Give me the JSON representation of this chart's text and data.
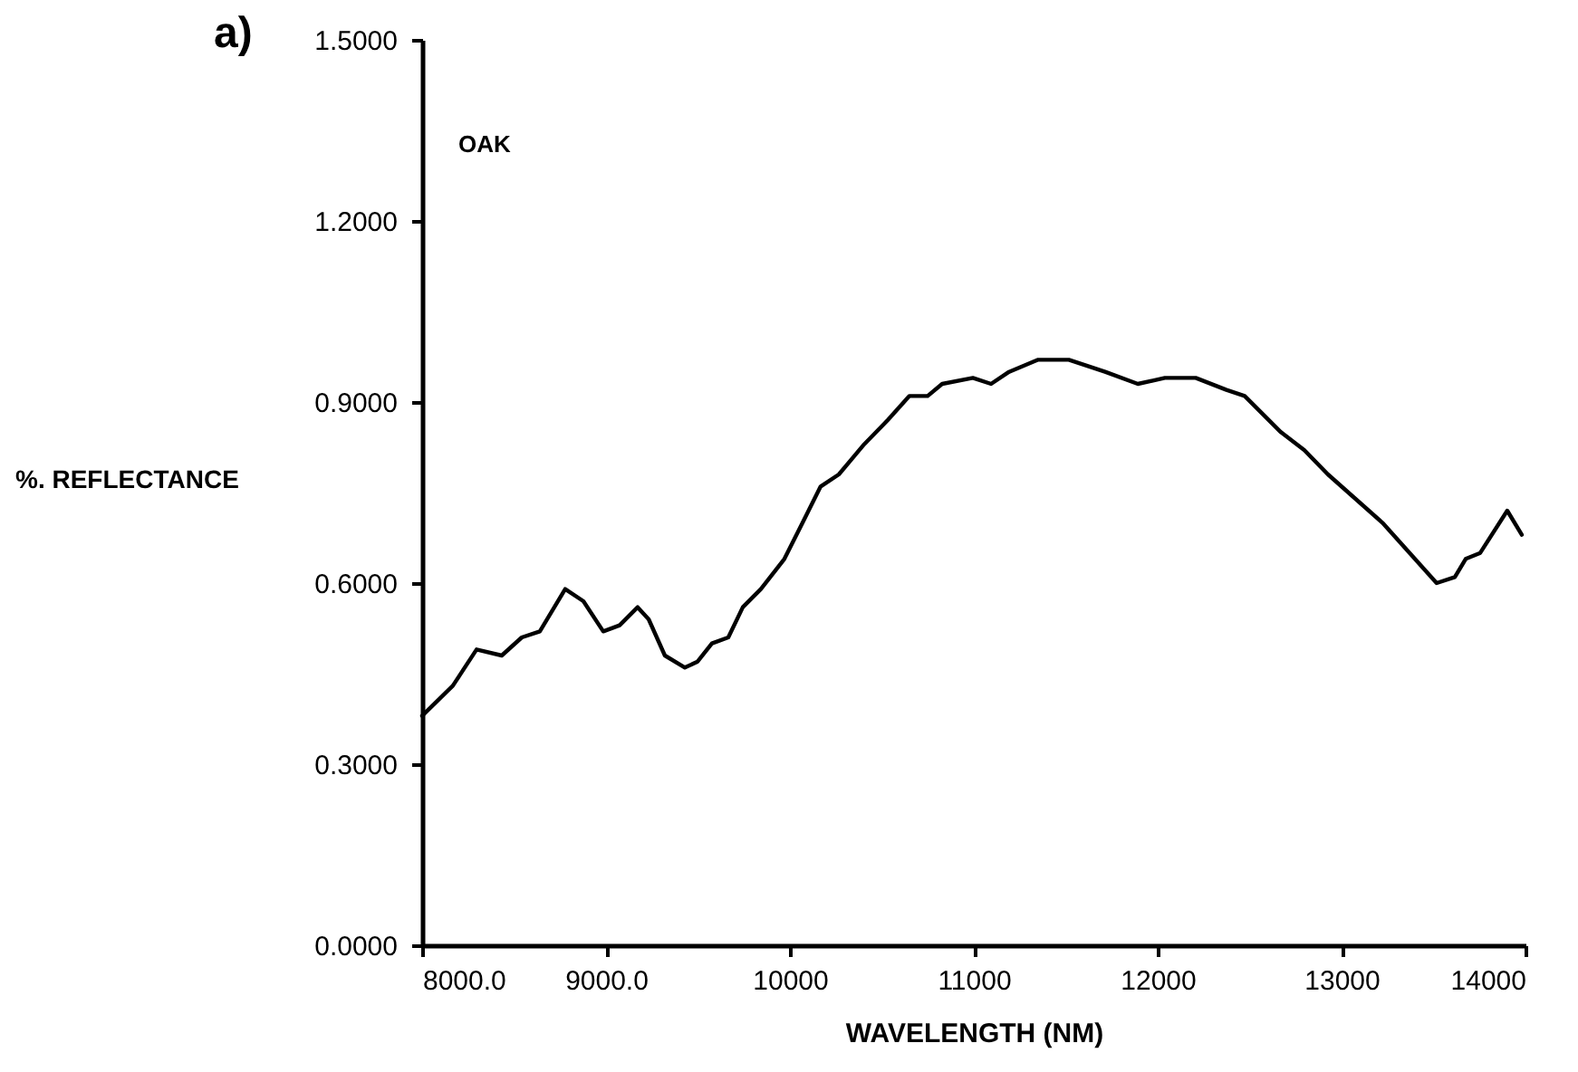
{
  "chart_data": {
    "type": "line",
    "title": "a)",
    "xlabel": "WAVELENGTH (NM)",
    "ylabel": "%. REFLECTANCE",
    "annotations": [
      "OAK"
    ],
    "xlim": [
      8000,
      14000
    ],
    "ylim": [
      0,
      1.5
    ],
    "xticks": [
      {
        "value": 8000,
        "label": "8000.0"
      },
      {
        "value": 9000,
        "label": "9000.0"
      },
      10000,
      11000,
      12000,
      13000,
      14000
    ],
    "yticks": [
      {
        "value": 0,
        "label": "0.0000"
      },
      {
        "value": 0.3,
        "label": "0.3000"
      },
      {
        "value": 0.6,
        "label": "0.6000"
      },
      {
        "value": 0.9,
        "label": "0.9000"
      },
      {
        "value": 1.2,
        "label": "1.2000"
      },
      {
        "value": 1.5,
        "label": "1.5000"
      }
    ],
    "grid": false,
    "line_style": "solid",
    "marker": "none",
    "series": [
      {
        "color": "#000000",
        "x": [
          8000,
          8167,
          8296,
          8433,
          8542,
          8640,
          8778,
          8877,
          8985,
          9074,
          9172,
          9232,
          9320,
          9429,
          9498,
          9576,
          9665,
          9744,
          9842,
          9970,
          10069,
          10167,
          10266,
          10404,
          10532,
          10650,
          10749,
          10828,
          10995,
          11094,
          11192,
          11350,
          11517,
          11714,
          11892,
          12039,
          12207,
          12374,
          12473,
          12670,
          12798,
          12926,
          13222,
          13517,
          13616,
          13675,
          13754,
          13901,
          13980
        ],
        "values": [
          0.38,
          0.43,
          0.49,
          0.48,
          0.51,
          0.52,
          0.59,
          0.57,
          0.52,
          0.53,
          0.56,
          0.54,
          0.48,
          0.46,
          0.47,
          0.5,
          0.51,
          0.56,
          0.59,
          0.64,
          0.7,
          0.76,
          0.78,
          0.83,
          0.87,
          0.91,
          0.91,
          0.93,
          0.94,
          0.93,
          0.95,
          0.97,
          0.97,
          0.95,
          0.93,
          0.94,
          0.94,
          0.92,
          0.91,
          0.85,
          0.82,
          0.78,
          0.7,
          0.6,
          0.61,
          0.64,
          0.65,
          0.72,
          0.68
        ]
      }
    ]
  }
}
